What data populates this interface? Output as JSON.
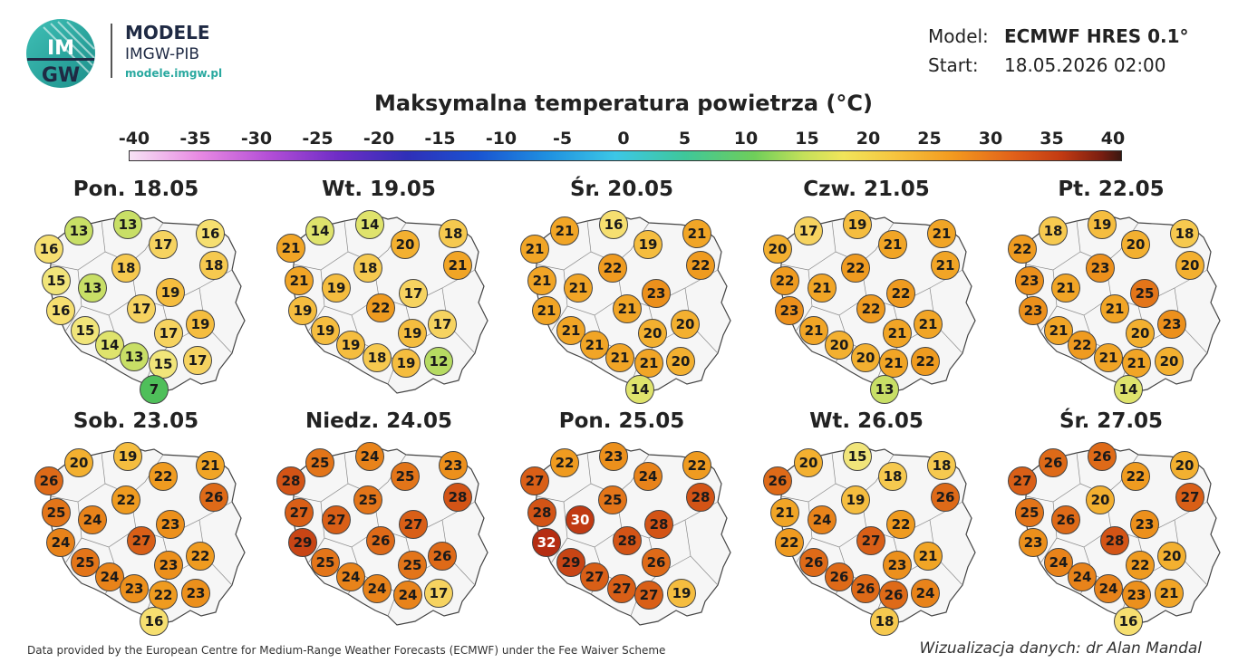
{
  "brand": {
    "logo_text_1": "IM",
    "logo_text_2": "GW",
    "title": "MODELE",
    "subtitle": "IMGW-PIB",
    "url": "modele.imgw.pl"
  },
  "meta": {
    "model_label": "Model:",
    "model_value": "ECMWF HRES 0.1°",
    "start_label": "Start:",
    "start_value": "18.05.2026 02:00"
  },
  "title": "Maksymalna temperatura powietrza (°C)",
  "legend": {
    "ticks": [
      "-40",
      "-35",
      "-30",
      "-25",
      "-20",
      "-15",
      "-10",
      "-5",
      "0",
      "5",
      "10",
      "15",
      "20",
      "25",
      "30",
      "35",
      "40"
    ]
  },
  "panels": [
    {
      "day": "Pon. 18.05",
      "values": [
        13,
        13,
        16,
        17,
        16,
        15,
        18,
        18,
        13,
        16,
        17,
        19,
        15,
        17,
        19,
        14,
        13,
        15,
        17,
        7
      ]
    },
    {
      "day": "Wt. 19.05",
      "values": [
        14,
        14,
        21,
        20,
        18,
        21,
        18,
        21,
        19,
        19,
        22,
        17,
        19,
        19,
        17,
        19,
        18,
        19,
        12
      ]
    },
    {
      "day": "Śr. 20.05",
      "values": [
        21,
        16,
        21,
        19,
        21,
        21,
        22,
        22,
        21,
        21,
        21,
        23,
        21,
        20,
        20,
        21,
        21,
        21,
        20,
        14
      ]
    },
    {
      "day": "Czw. 21.05",
      "values": [
        17,
        19,
        20,
        21,
        21,
        22,
        22,
        21,
        21,
        23,
        22,
        22,
        21,
        21,
        21,
        20,
        20,
        21,
        22,
        13
      ]
    },
    {
      "day": "Pt. 22.05",
      "values": [
        18,
        19,
        22,
        20,
        18,
        23,
        23,
        20,
        21,
        23,
        21,
        25,
        21,
        20,
        23,
        22,
        21,
        21,
        20,
        14
      ]
    },
    {
      "day": "Sob. 23.05",
      "values": [
        20,
        19,
        26,
        22,
        21,
        25,
        22,
        26,
        24,
        24,
        27,
        23,
        25,
        23,
        22,
        24,
        23,
        22,
        23,
        16
      ]
    },
    {
      "day": "Niedz. 24.05",
      "values": [
        25,
        24,
        28,
        25,
        23,
        27,
        25,
        28,
        27,
        29,
        26,
        27,
        25,
        25,
        26,
        24,
        24,
        24,
        17
      ]
    },
    {
      "day": "Pon. 25.05",
      "values": [
        22,
        23,
        27,
        24,
        22,
        28,
        25,
        28,
        30,
        28,
        32,
        28,
        26,
        29,
        27,
        27,
        27,
        19
      ]
    },
    {
      "day": "Wt. 26.05",
      "values": [
        20,
        15,
        26,
        18,
        18,
        21,
        19,
        26,
        24,
        22,
        27,
        22,
        26,
        23,
        21,
        26,
        26,
        26,
        24,
        18
      ]
    },
    {
      "day": "Śr. 27.05",
      "values": [
        26,
        26,
        27,
        22,
        20,
        25,
        20,
        27,
        26,
        23,
        28,
        23,
        24,
        22,
        20,
        24,
        24,
        23,
        21,
        16
      ]
    }
  ],
  "footer": "Data provided by the European Centre for Medium-Range Weather Forecasts (ECMWF) under the Fee Waiver Scheme",
  "credit": "Wizualizacja danych: dr Alan Mandal"
}
